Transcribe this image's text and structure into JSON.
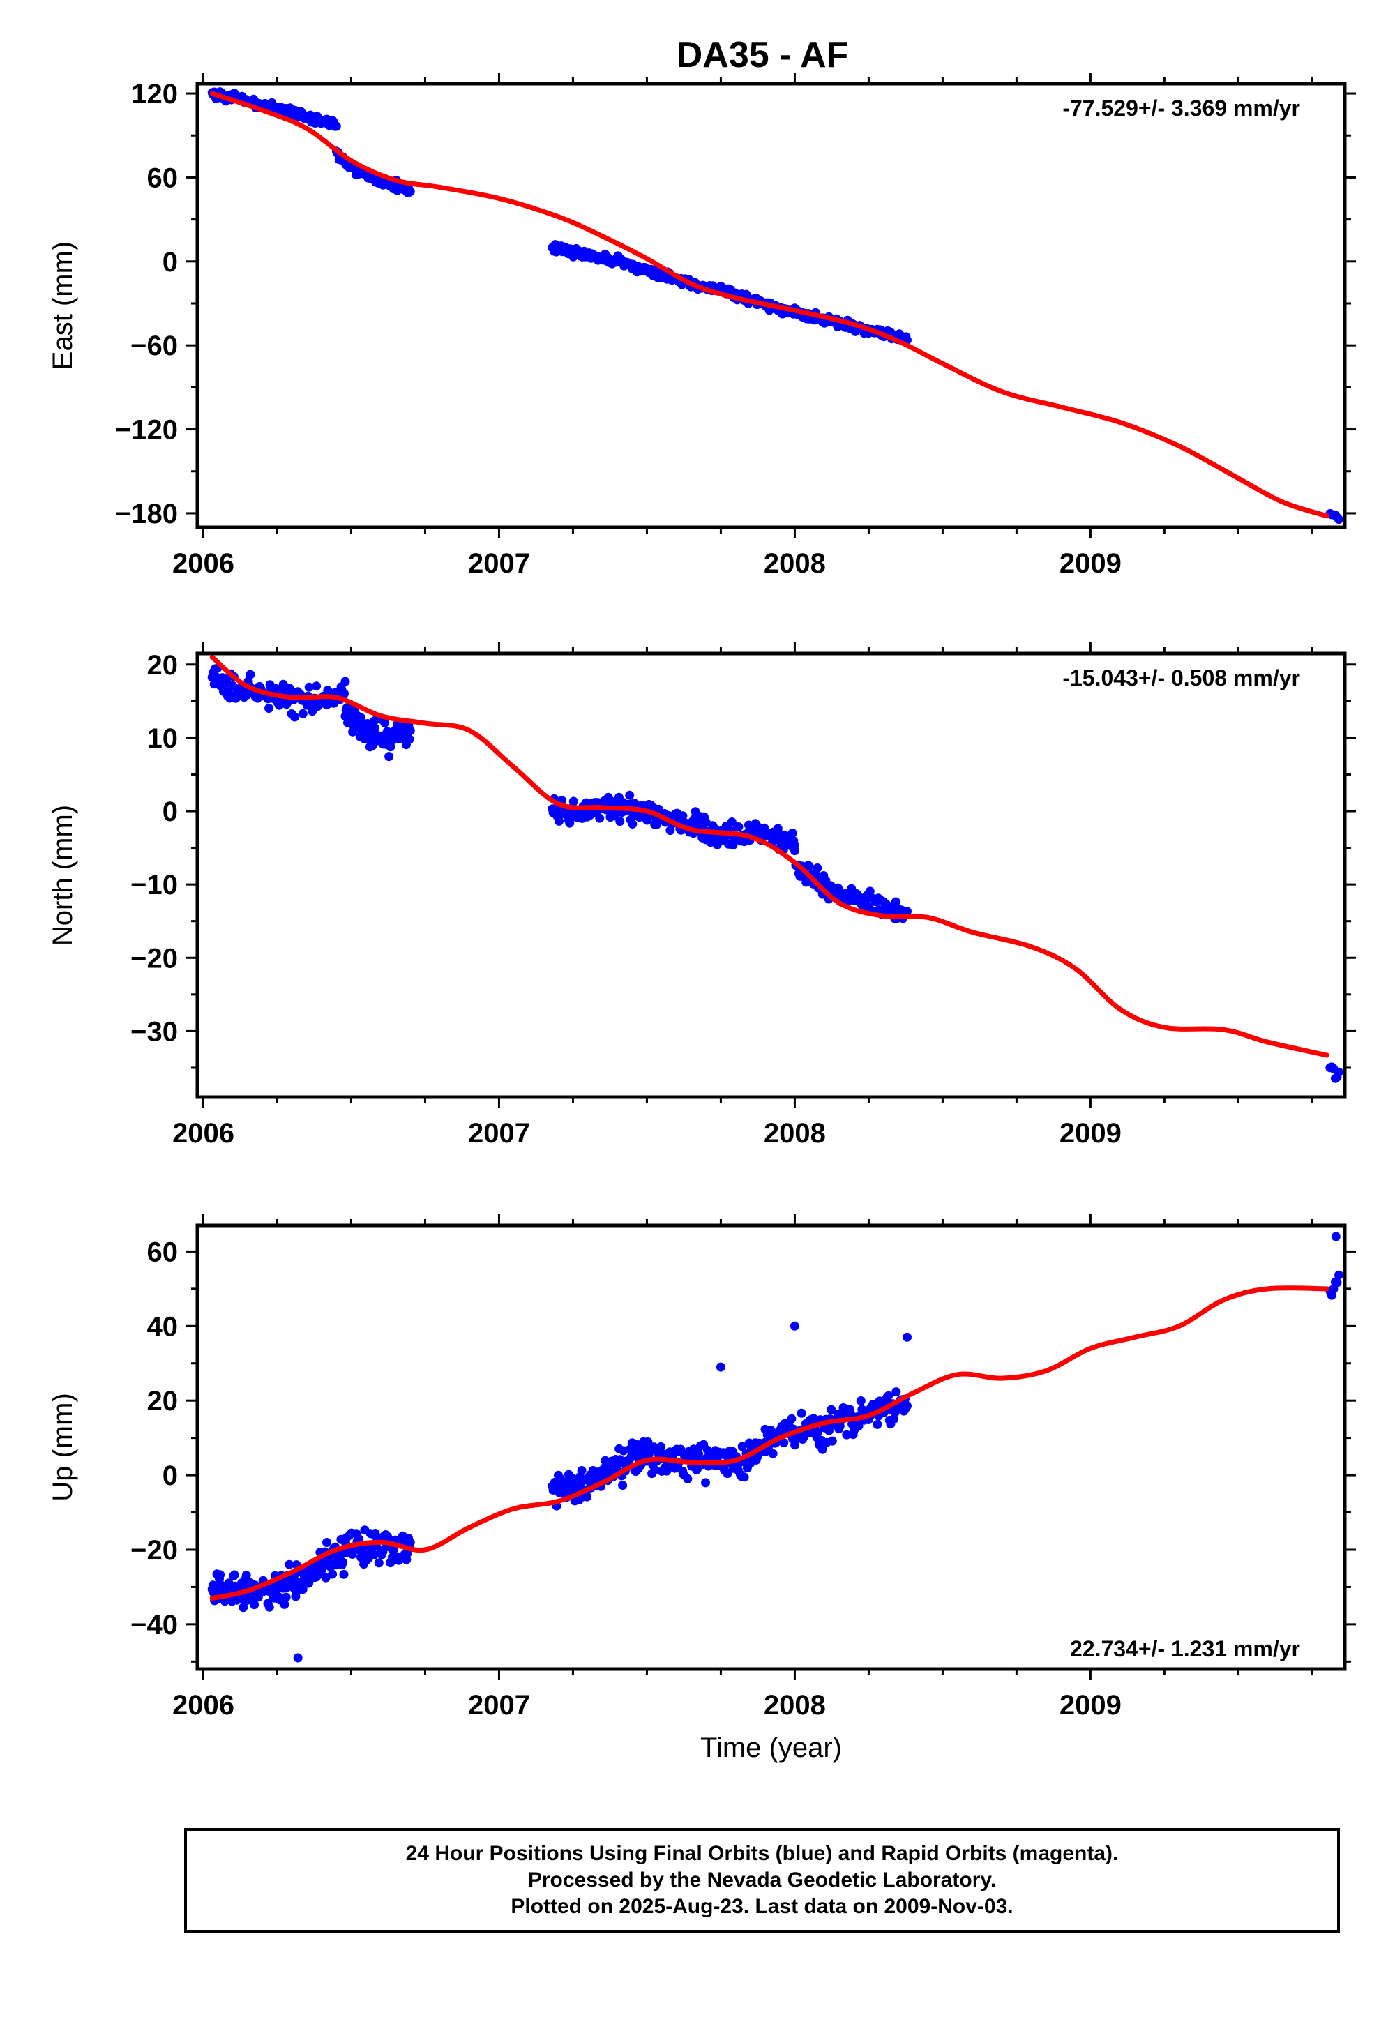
{
  "title": "DA35 - AF",
  "caption": {
    "line1": "24 Hour Positions Using Final Orbits (blue) and Rapid Orbits (magenta).",
    "line2": "Processed by the Nevada Geodetic Laboratory.",
    "line3": "Plotted on 2025-Aug-23. Last data on 2009-Nov-03."
  },
  "colors": {
    "points": "#0000ff",
    "trend": "#ff0000",
    "axes": "#000000"
  },
  "chart_data": [
    {
      "type": "scatter",
      "ylabel": "East (mm)",
      "xlabel": "",
      "rate_label": "-77.529+/- 3.369 mm/yr",
      "rate_position": "top-right",
      "xlim": [
        2005.98,
        2009.86
      ],
      "ylim": [
        -190,
        127
      ],
      "xticks": [
        2006,
        2007,
        2008,
        2009
      ],
      "yticks": [
        -180,
        -120,
        -60,
        0,
        60,
        120
      ],
      "ytick_labels": [
        "−180",
        "−120",
        "−60",
        "0",
        "60",
        "120"
      ],
      "points_segments": [
        {
          "x0": 2006.03,
          "x1": 2006.45,
          "y": [
            120,
            118,
            115,
            112,
            110,
            107,
            104,
            100,
            98
          ],
          "noise": 2.5,
          "n": 130
        },
        {
          "x0": 2006.45,
          "x1": 2006.7,
          "y": [
            77,
            66,
            60,
            55,
            50
          ],
          "noise": 3,
          "n": 80
        },
        {
          "x0": 2007.18,
          "x1": 2007.75,
          "y": [
            10,
            5,
            0,
            -8,
            -15,
            -20
          ],
          "noise": 2.5,
          "n": 170
        },
        {
          "x0": 2007.75,
          "x1": 2008.38,
          "y": [
            -20,
            -28,
            -34,
            -40,
            -45,
            -50,
            -55
          ],
          "noise": 2.5,
          "n": 170
        },
        {
          "x0": 2009.81,
          "x1": 2009.84,
          "y": [
            -181,
            -183
          ],
          "noise": 1.5,
          "n": 6
        }
      ],
      "trend": {
        "x": [
          2006.03,
          2006.2,
          2006.35,
          2006.5,
          2006.65,
          2006.8,
          2007.0,
          2007.2,
          2007.35,
          2007.5,
          2007.65,
          2007.8,
          2008.0,
          2008.2,
          2008.35,
          2008.5,
          2008.7,
          2008.9,
          2009.1,
          2009.3,
          2009.5,
          2009.65,
          2009.8
        ],
        "y": [
          120,
          108,
          95,
          72,
          58,
          53,
          45,
          32,
          18,
          2,
          -16,
          -26,
          -35,
          -45,
          -57,
          -73,
          -93,
          -104,
          -115,
          -132,
          -155,
          -172,
          -182
        ]
      }
    },
    {
      "type": "scatter",
      "ylabel": "North (mm)",
      "xlabel": "",
      "rate_label": "-15.043+/- 0.508 mm/yr",
      "rate_position": "top-right",
      "xlim": [
        2005.98,
        2009.86
      ],
      "ylim": [
        -39,
        21.5
      ],
      "xticks": [
        2006,
        2007,
        2008,
        2009
      ],
      "yticks": [
        -30,
        -20,
        -10,
        0,
        10,
        20
      ],
      "ytick_labels": [
        "−30",
        "−20",
        "−10",
        "0",
        "10",
        "20"
      ],
      "points_segments": [
        {
          "x0": 2006.03,
          "x1": 2006.48,
          "y": [
            18,
            17,
            16,
            15,
            15,
            16
          ],
          "noise": 1.5,
          "n": 130
        },
        {
          "x0": 2006.48,
          "x1": 2006.7,
          "y": [
            13,
            11,
            10,
            11
          ],
          "noise": 1.8,
          "n": 80
        },
        {
          "x0": 2007.18,
          "x1": 2007.7,
          "y": [
            0,
            0,
            0.5,
            0,
            -1,
            -2
          ],
          "noise": 1.3,
          "n": 160
        },
        {
          "x0": 2007.7,
          "x1": 2008.0,
          "y": [
            -3,
            -3.5,
            -3,
            -4
          ],
          "noise": 1.4,
          "n": 80
        },
        {
          "x0": 2008.0,
          "x1": 2008.38,
          "y": [
            -7,
            -10,
            -12,
            -13,
            -14
          ],
          "noise": 1.3,
          "n": 110
        },
        {
          "x0": 2009.81,
          "x1": 2009.84,
          "y": [
            -35,
            -37
          ],
          "noise": 1.2,
          "n": 6
        }
      ],
      "trend": {
        "x": [
          2006.03,
          2006.15,
          2006.3,
          2006.45,
          2006.6,
          2006.75,
          2006.9,
          2007.05,
          2007.2,
          2007.35,
          2007.5,
          2007.65,
          2007.85,
          2008.0,
          2008.15,
          2008.3,
          2008.45,
          2008.6,
          2008.8,
          2008.95,
          2009.1,
          2009.25,
          2009.45,
          2009.6,
          2009.8
        ],
        "y": [
          21,
          17,
          15.5,
          15.5,
          13,
          12,
          11,
          6,
          1,
          0.5,
          0,
          -2.5,
          -3.5,
          -7,
          -12.5,
          -14.3,
          -14.5,
          -16.5,
          -18.5,
          -21.5,
          -27,
          -29.5,
          -29.8,
          -31.5,
          -33.3
        ]
      }
    },
    {
      "type": "scatter",
      "ylabel": "Up (mm)",
      "xlabel": "Time (year)",
      "rate_label": "22.734+/- 1.231 mm/yr",
      "rate_position": "bottom-right",
      "xlim": [
        2005.98,
        2009.86
      ],
      "ylim": [
        -52,
        67
      ],
      "xticks": [
        2006,
        2007,
        2008,
        2009
      ],
      "yticks": [
        -40,
        -20,
        0,
        20,
        40,
        60
      ],
      "ytick_labels": [
        "−40",
        "−20",
        "0",
        "20",
        "40",
        "60"
      ],
      "points_segments": [
        {
          "x0": 2006.03,
          "x1": 2006.35,
          "y": [
            -31,
            -32,
            -31,
            -30,
            -28
          ],
          "noise": 3.5,
          "n": 120
        },
        {
          "x0": 2006.35,
          "x1": 2006.7,
          "y": [
            -26,
            -21,
            -19,
            -20
          ],
          "noise": 4,
          "n": 110
        },
        {
          "x0": 2007.18,
          "x1": 2007.5,
          "y": [
            -4,
            -3,
            2,
            6
          ],
          "noise": 4,
          "n": 110
        },
        {
          "x0": 2007.5,
          "x1": 2007.9,
          "y": [
            5,
            4,
            3,
            4,
            7
          ],
          "noise": 4,
          "n": 120
        },
        {
          "x0": 2007.9,
          "x1": 2008.38,
          "y": [
            9,
            12,
            14,
            17,
            20
          ],
          "noise": 4,
          "n": 130
        },
        {
          "x0": 2009.81,
          "x1": 2009.84,
          "y": [
            49,
            52
          ],
          "noise": 1.5,
          "n": 6
        }
      ],
      "outliers": [
        [
          2006.32,
          -49
        ],
        [
          2007.75,
          29
        ],
        [
          2008.0,
          40
        ],
        [
          2008.38,
          37
        ],
        [
          2009.83,
          64
        ]
      ],
      "trend": {
        "x": [
          2006.03,
          2006.15,
          2006.3,
          2006.45,
          2006.6,
          2006.75,
          2006.9,
          2007.05,
          2007.2,
          2007.35,
          2007.5,
          2007.65,
          2007.8,
          2007.95,
          2008.1,
          2008.25,
          2008.4,
          2008.55,
          2008.7,
          2008.85,
          2009.0,
          2009.15,
          2009.3,
          2009.45,
          2009.6,
          2009.8
        ],
        "y": [
          -33,
          -31,
          -26,
          -20,
          -18,
          -20,
          -14,
          -9,
          -7,
          -2,
          4,
          3.5,
          4,
          10,
          14,
          16,
          22,
          27,
          26,
          28,
          34,
          37,
          40,
          47,
          50,
          50
        ]
      }
    }
  ]
}
